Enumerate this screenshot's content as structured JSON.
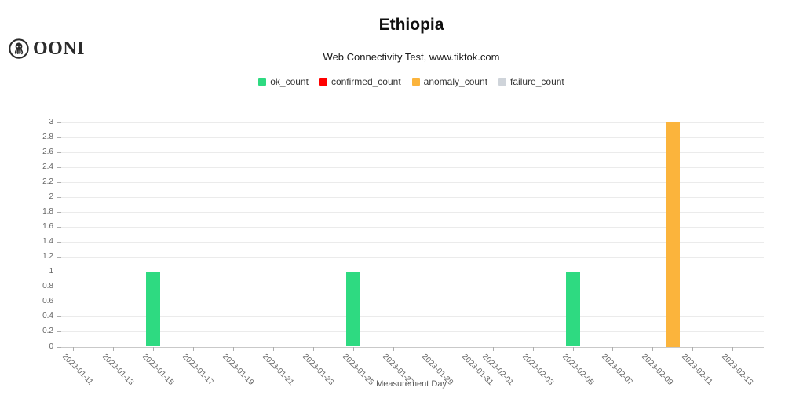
{
  "branding": {
    "logo_text": "OONI"
  },
  "chart_data": {
    "type": "bar",
    "title": "Ethiopia",
    "subtitle": "Web Connectivity Test, www.tiktok.com",
    "xlabel": "Measurement Day",
    "ylabel": "",
    "ylim": [
      0,
      3
    ],
    "y_tick_step": 0.2,
    "grid": true,
    "legend_position": "top",
    "x_ticks": [
      "2023-01-11",
      "2023-01-13",
      "2023-01-15",
      "2023-01-17",
      "2023-01-19",
      "2023-01-21",
      "2023-01-23",
      "2023-01-25",
      "2023-01-27",
      "2023-01-29",
      "2023-01-31",
      "2023-02-01",
      "2023-02-03",
      "2023-02-05",
      "2023-02-07",
      "2023-02-09",
      "2023-02-11",
      "2023-02-13"
    ],
    "series": [
      {
        "name": "ok_count",
        "color": "#2EDA81",
        "points": [
          [
            "2023-01-15",
            1
          ],
          [
            "2023-01-25",
            1
          ],
          [
            "2023-02-05",
            1
          ]
        ]
      },
      {
        "name": "confirmed_count",
        "color": "#FF0000",
        "points": []
      },
      {
        "name": "anomaly_count",
        "color": "#FBB43C",
        "points": [
          [
            "2023-02-10",
            3
          ]
        ]
      },
      {
        "name": "failure_count",
        "color": "#CFD4DA",
        "points": []
      }
    ]
  }
}
